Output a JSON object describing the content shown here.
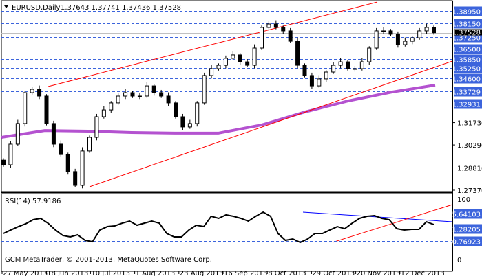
{
  "header": {
    "symbol": "EURUSD,Daily",
    "ohlc": "1.37643 1.37741 1.37436 1.37528"
  },
  "rsi_label": "RSI(14) 57.9186",
  "copyright": "GCM MetaTrader, © 2001-2013, MetaQuotes Software Corp.",
  "colors": {
    "level_line": "#3c64dc",
    "label_bg": "#3c64dc",
    "trendline": "#ff0000",
    "ma": "#b452d0",
    "rsi_trend": "#0000ff",
    "current_price_bg": "#000000"
  },
  "chart_data": [
    {
      "type": "candlestick",
      "symbol": "EURUSD",
      "timeframe": "Daily",
      "ylim": [
        1.2737,
        1.396
      ],
      "price_ticks": [
        "1.27370",
        "1.28810",
        "1.30290",
        "1.31730"
      ],
      "x_ticks": [
        "27 May 2013",
        "18 Jun 2013",
        "10 Jul 2013",
        "1 Aug 2013",
        "23 Aug 2013",
        "16 Sep 2013",
        "8 Oct 2013",
        "29 Oct 2013",
        "20 Nov 2013",
        "12 Dec 2013"
      ],
      "closes_approx": [
        1.2901,
        1.3034,
        1.3167,
        1.3366,
        1.3388,
        1.3344,
        1.3167,
        1.3034,
        1.2967,
        1.2857,
        1.2768,
        1.299,
        1.3078,
        1.3211,
        1.3255,
        1.33,
        1.3344,
        1.3366,
        1.3344,
        1.3344,
        1.341,
        1.3366,
        1.3344,
        1.33,
        1.3211,
        1.3145,
        1.3167,
        1.33,
        1.3477,
        1.3521,
        1.3543,
        1.3588,
        1.361,
        1.3565,
        1.3543,
        1.3654,
        1.3787,
        1.3809,
        1.3787,
        1.3765,
        1.3698,
        1.3543,
        1.3477,
        1.341,
        1.3455,
        1.3499,
        1.3543,
        1.3565,
        1.3521,
        1.3521,
        1.3565,
        1.3654,
        1.3765,
        1.3765,
        1.3743,
        1.3676,
        1.3698,
        1.372,
        1.3765,
        1.3787,
        1.3753
      ],
      "moving_average_approx": [
        1.3078,
        1.3122,
        1.3118,
        1.3109,
        1.3105,
        1.3105,
        1.3158,
        1.3242,
        1.3313,
        1.337,
        1.3415
      ],
      "levels": [
        {
          "label": "1.38950",
          "value": 1.3895
        },
        {
          "label": "1.38150",
          "value": 1.3815
        },
        {
          "label": "1.37250",
          "value": 1.3725
        },
        {
          "label": "1.36500",
          "value": 1.365
        },
        {
          "label": "1.35850",
          "value": 1.3585
        },
        {
          "label": "1.35250",
          "value": 1.3525
        },
        {
          "label": "1.34600",
          "value": 1.346
        },
        {
          "label": "1.33729",
          "value": 1.33729
        },
        {
          "label": "1.32931",
          "value": 1.32931
        }
      ],
      "current_price": {
        "label": "1.37528",
        "value": 1.37528
      }
    },
    {
      "type": "line",
      "name": "RSI(14)",
      "ylim": [
        0,
        100
      ],
      "y_ticks": [
        "100",
        "0"
      ],
      "levels": [
        {
          "label": "75.64103",
          "value": 75.64103
        },
        {
          "label": "51.28205",
          "value": 51.28205
        },
        {
          "label": "30.76923",
          "value": 30.76923
        }
      ],
      "values_approx": [
        43.2,
        48.9,
        54.5,
        59.1,
        65.9,
        68.2,
        60.2,
        48.9,
        39.8,
        37.5,
        40.9,
        31.8,
        29.5,
        48.9,
        54.5,
        55.7,
        60.2,
        63.6,
        56.8,
        60.2,
        63.6,
        60.2,
        43.2,
        37.5,
        37.5,
        48.9,
        56.8,
        54.5,
        71.6,
        68.2,
        73.9,
        71.6,
        68.2,
        63.6,
        71.6,
        78.4,
        71.6,
        43.2,
        31.8,
        34.1,
        28.4,
        34.1,
        43.2,
        43.2,
        48.9,
        54.5,
        51.1,
        60.2,
        68.2,
        71.6,
        72.7,
        68.2,
        65.9,
        51.1,
        48.9,
        50.0,
        50.0,
        62.5,
        57.9
      ]
    }
  ]
}
